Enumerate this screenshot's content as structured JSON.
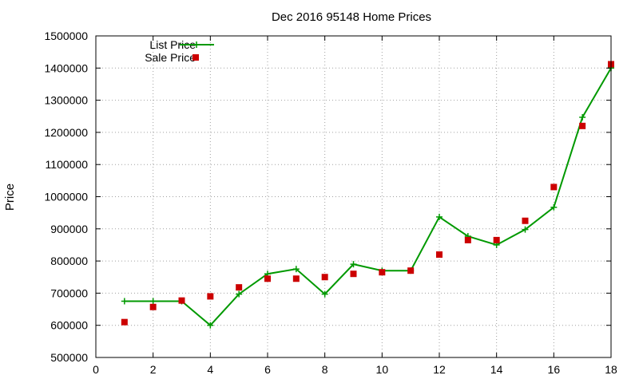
{
  "chart_data": {
    "type": "line",
    "title": "Dec 2016 95148 Home Prices",
    "xlabel": "",
    "ylabel": "Price",
    "xlim": [
      0,
      18
    ],
    "ylim": [
      500000,
      1500000
    ],
    "xticks": [
      0,
      2,
      4,
      6,
      8,
      10,
      12,
      14,
      16,
      18
    ],
    "yticks": [
      500000,
      600000,
      700000,
      800000,
      900000,
      1000000,
      1100000,
      1200000,
      1300000,
      1400000,
      1500000
    ],
    "grid": true,
    "legend_position": "top-left",
    "series": [
      {
        "name": "List Price",
        "style": "line-points",
        "color": "#009900",
        "marker": "plus",
        "x": [
          1,
          2,
          3,
          4,
          5,
          6,
          7,
          8,
          9,
          10,
          11,
          12,
          13,
          14,
          15,
          16,
          17,
          18
        ],
        "y": [
          675000,
          675000,
          675000,
          600000,
          697000,
          760000,
          775000,
          697000,
          790000,
          770000,
          770000,
          937000,
          877000,
          850000,
          898000,
          967000,
          1247000,
          1400000
        ]
      },
      {
        "name": "Sale Price",
        "style": "points",
        "color": "#cc0000",
        "marker": "square",
        "x": [
          1,
          2,
          3,
          4,
          5,
          6,
          7,
          8,
          9,
          10,
          11,
          12,
          13,
          14,
          15,
          16,
          17,
          18
        ],
        "y": [
          610000,
          657000,
          677000,
          690000,
          718000,
          745000,
          745000,
          750000,
          760000,
          765000,
          770000,
          820000,
          865000,
          865000,
          925000,
          1030000,
          1220000,
          1412000
        ]
      }
    ]
  }
}
